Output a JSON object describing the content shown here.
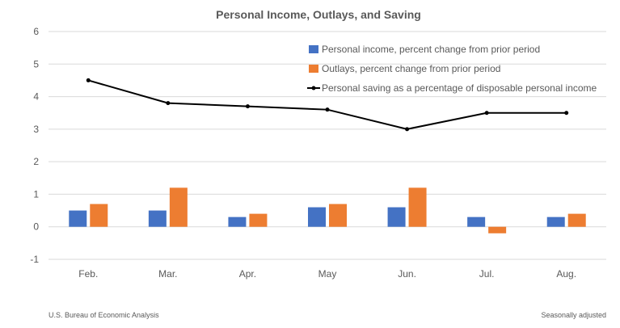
{
  "chart_data": {
    "type": "bar",
    "title": "Personal Income, Outlays, and Saving",
    "categories": [
      "Feb.",
      "Mar.",
      "Apr.",
      "May",
      "Jun.",
      "Jul.",
      "Aug."
    ],
    "ylim": [
      -1,
      6
    ],
    "yticks": [
      -1,
      0,
      1,
      2,
      3,
      4,
      5,
      6
    ],
    "grid": true,
    "legend_placement": "top-right",
    "series": [
      {
        "name": "Personal income, percent change from prior period",
        "kind": "bar",
        "color": "#4472C4",
        "values": [
          0.5,
          0.5,
          0.3,
          0.6,
          0.6,
          0.3,
          0.3
        ]
      },
      {
        "name": "Outlays, percent change from prior period",
        "kind": "bar",
        "color": "#ED7D31",
        "values": [
          0.7,
          1.2,
          0.4,
          0.7,
          1.2,
          -0.2,
          0.4
        ]
      },
      {
        "name": "Personal saving as a percentage of disposable personal income",
        "kind": "line",
        "color": "#000000",
        "values": [
          4.5,
          3.8,
          3.7,
          3.6,
          3.0,
          3.5,
          3.5
        ]
      }
    ]
  },
  "footer": {
    "source": "U.S. Bureau of Economic Analysis",
    "note": "Seasonally adjusted"
  }
}
